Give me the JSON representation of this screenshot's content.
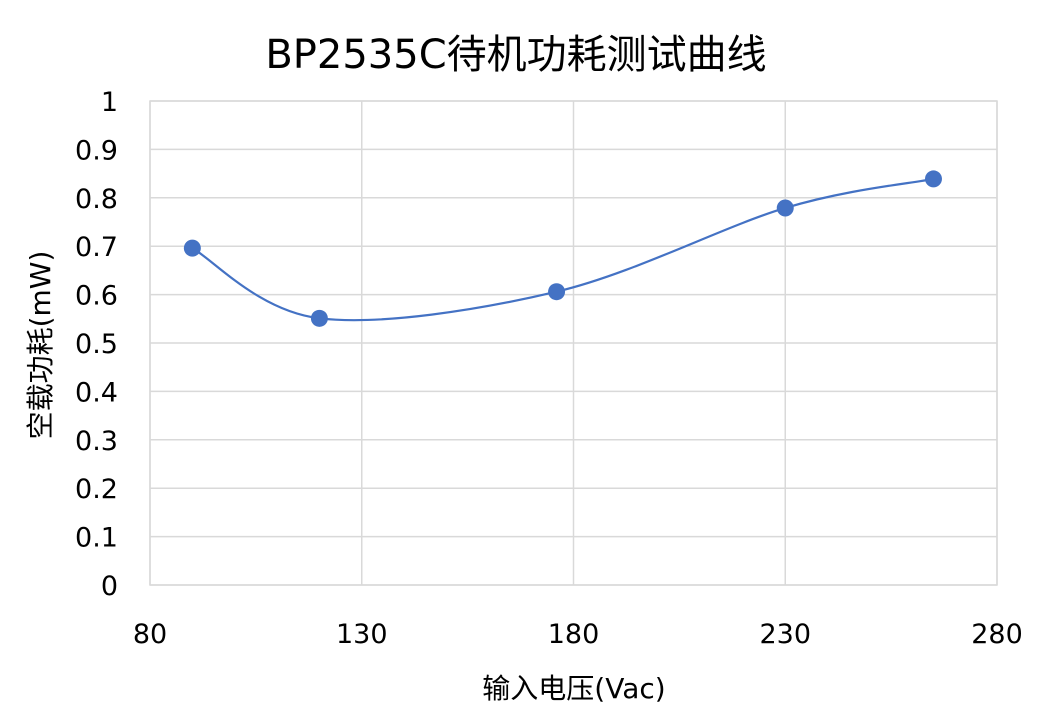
{
  "chart_data": {
    "type": "scatter",
    "title": "BP2535C待机功耗测试曲线",
    "xlabel": "输入电压(Vac)",
    "ylabel": "空载功耗(mW)",
    "xlim": [
      80,
      280
    ],
    "ylim": [
      0,
      1
    ],
    "x_ticks": [
      80,
      130,
      180,
      230,
      280
    ],
    "y_ticks": [
      0,
      0.1,
      0.2,
      0.3,
      0.4,
      0.5,
      0.6,
      0.7,
      0.8,
      0.9,
      1
    ],
    "x_tick_labels": [
      "80",
      "130",
      "180",
      "230",
      "280"
    ],
    "y_tick_labels": [
      "0",
      "0.1",
      "0.2",
      "0.3",
      "0.4",
      "0.5",
      "0.6",
      "0.7",
      "0.8",
      "0.9",
      "1"
    ],
    "grid": true,
    "smooth_line": true,
    "series": [
      {
        "x": [
          90,
          120,
          176,
          230,
          265
        ],
        "y": [
          0.696,
          0.551,
          0.606,
          0.779,
          0.839
        ],
        "color": "#4472c4"
      }
    ]
  }
}
